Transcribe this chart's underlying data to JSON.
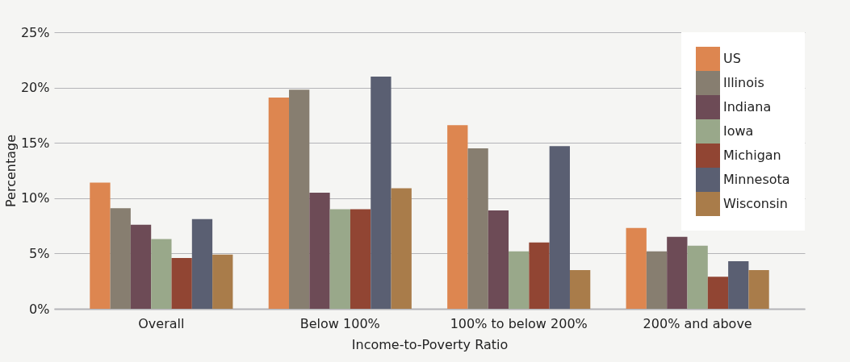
{
  "chart_data": {
    "type": "bar",
    "xlabel": "Income-to-Poverty Ratio",
    "ylabel": "Percentage",
    "categories": [
      "Overall",
      "Below 100%",
      "100% to below 200%",
      "200% and above"
    ],
    "series": [
      {
        "name": "US",
        "color": "#dd8650",
        "values": [
          11.4,
          19.1,
          16.6,
          7.3
        ]
      },
      {
        "name": "Illinois",
        "color": "#877e70",
        "values": [
          9.1,
          19.8,
          14.5,
          5.2
        ]
      },
      {
        "name": "Indiana",
        "color": "#6d4b56",
        "values": [
          7.6,
          10.5,
          8.9,
          6.5
        ]
      },
      {
        "name": "Iowa",
        "color": "#99a88a",
        "values": [
          6.3,
          9.0,
          5.2,
          5.7
        ]
      },
      {
        "name": "Michigan",
        "color": "#914533",
        "values": [
          4.6,
          9.0,
          6.0,
          2.9
        ]
      },
      {
        "name": "Minnesota",
        "color": "#5a5f72",
        "values": [
          8.1,
          21.0,
          14.7,
          4.3
        ]
      },
      {
        "name": "Wisconsin",
        "color": "#a97c4a",
        "values": [
          4.9,
          10.9,
          3.5,
          3.5
        ]
      }
    ],
    "ylim": [
      0,
      25
    ],
    "yticks": [
      {
        "value": 0,
        "label": "0%"
      },
      {
        "value": 5,
        "label": "5%"
      },
      {
        "value": 10,
        "label": "10%"
      },
      {
        "value": 15,
        "label": "15%"
      },
      {
        "value": 20,
        "label": "20%"
      },
      {
        "value": 25,
        "label": "25%"
      }
    ],
    "grid": "y",
    "legend": "top right"
  }
}
